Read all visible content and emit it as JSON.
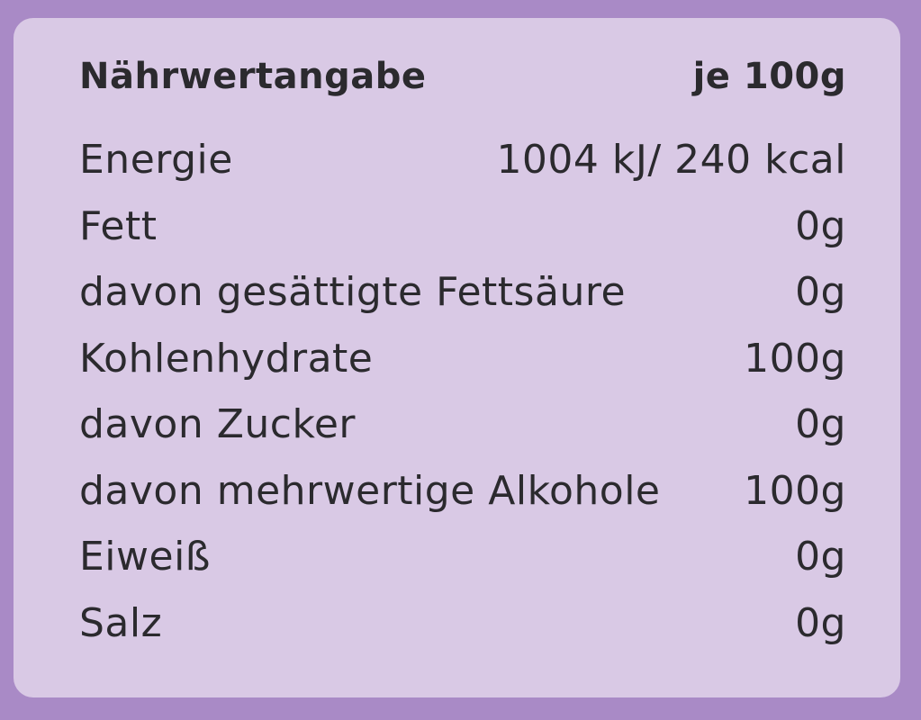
{
  "header": {
    "title": "Nährwertangabe",
    "per": "je 100g"
  },
  "rows": [
    {
      "label": "Energie",
      "value": "1004 kJ/ 240 kcal"
    },
    {
      "label": "Fett",
      "value": "0g"
    },
    {
      "label": "davon gesättigte Fettsäure",
      "value": "0g"
    },
    {
      "label": "Kohlenhydrate",
      "value": "100g"
    },
    {
      "label": "davon Zucker",
      "value": "0g"
    },
    {
      "label": "davon mehrwertige Alkohole",
      "value": "100g"
    },
    {
      "label": "Eiweiß",
      "value": "0g"
    },
    {
      "label": "Salz",
      "value": "0g"
    }
  ],
  "colors": {
    "background": "#a98ac6",
    "label": "#d9c9e5",
    "text": "#2b2a2e"
  }
}
